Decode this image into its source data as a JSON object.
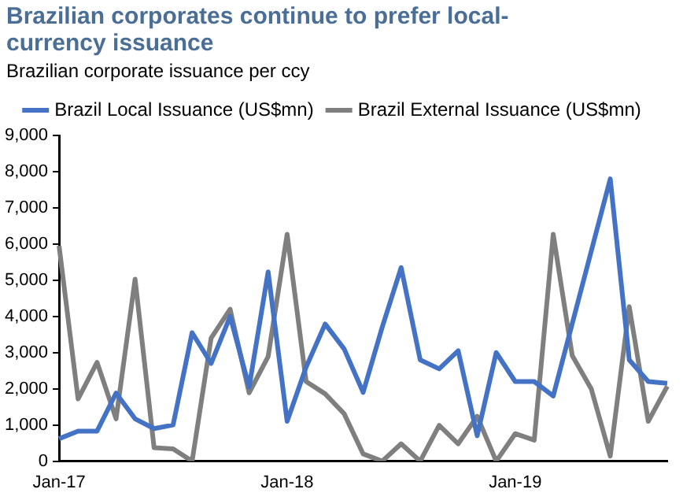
{
  "chart_data": {
    "type": "line",
    "title": "Brazilian corporates continue to prefer local-currency issuance",
    "subtitle": "Brazilian corporate issuance per ccy",
    "categories": [
      "Jan-17",
      null,
      null,
      null,
      null,
      null,
      null,
      null,
      null,
      null,
      null,
      null,
      "Jan-18",
      null,
      null,
      null,
      null,
      null,
      null,
      null,
      null,
      null,
      null,
      null,
      "Jan-19",
      null,
      null,
      null,
      null,
      null,
      null,
      null,
      null
    ],
    "series": [
      {
        "name": "Brazil Local Issuance (US$mn)",
        "color": "#4472c4",
        "values": [
          620,
          830,
          830,
          1880,
          1170,
          900,
          1000,
          3550,
          2700,
          4000,
          2050,
          5230,
          1100,
          2600,
          3790,
          3100,
          1900,
          3700,
          5350,
          2800,
          2550,
          3050,
          700,
          3000,
          2200,
          2200,
          1800,
          3800,
          5800,
          7800,
          2800,
          2200,
          2150
        ]
      },
      {
        "name": "Brazil External Issuance (US$mn)",
        "color": "#7f7f7f",
        "values": [
          5950,
          1720,
          2730,
          1170,
          5030,
          370,
          340,
          0,
          3400,
          4200,
          1890,
          2890,
          6270,
          2200,
          1860,
          1310,
          200,
          0,
          480,
          0,
          990,
          480,
          1240,
          0,
          760,
          580,
          6270,
          2920,
          2000,
          140,
          4270,
          1100,
          2070
        ]
      }
    ],
    "ylim": [
      0,
      9000
    ],
    "yticks": [
      0,
      {
        "value": 1000,
        "label": "1,000"
      },
      {
        "value": 2000,
        "label": "2,000"
      },
      {
        "value": 3000,
        "label": "3,000"
      },
      {
        "value": 4000,
        "label": "4,000"
      },
      {
        "value": 5000,
        "label": "5,000"
      },
      {
        "value": 6000,
        "label": "6,000"
      },
      {
        "value": 7000,
        "label": "7,000"
      },
      {
        "value": 8000,
        "label": "8,000"
      },
      {
        "value": 9000,
        "label": "9,000"
      }
    ],
    "grid": false,
    "legend": "top",
    "marker": "none",
    "line_style": "solid"
  }
}
